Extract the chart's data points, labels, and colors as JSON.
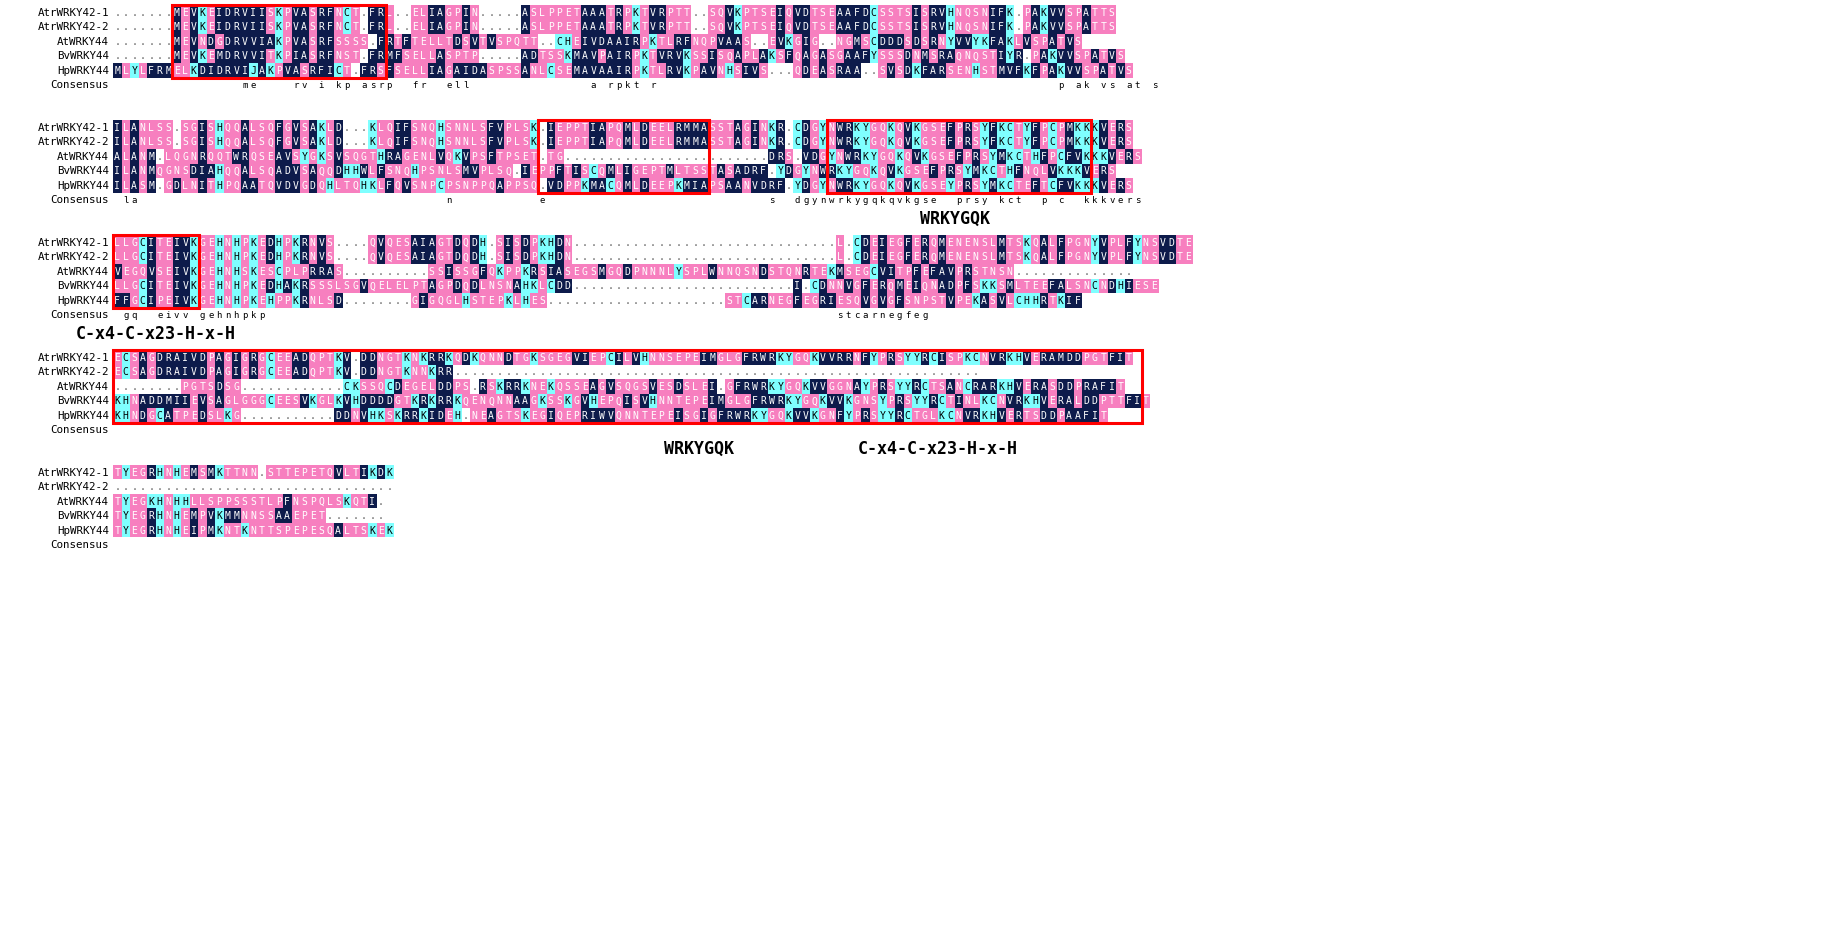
{
  "figsize": [
    18.38,
    9.3
  ],
  "dpi": 100,
  "background": "#ffffff",
  "clustal_colors": {
    "A": [
      "#0d1b4b",
      "#ffffff"
    ],
    "V": [
      "#0d1b4b",
      "#ffffff"
    ],
    "I": [
      "#0d1b4b",
      "#ffffff"
    ],
    "L": [
      "#f77fbf",
      "#ffffff"
    ],
    "M": [
      "#0d1b4b",
      "#ffffff"
    ],
    "F": [
      "#0d1b4b",
      "#ffffff"
    ],
    "W": [
      "#0d1b4b",
      "#ffffff"
    ],
    "P": [
      "#f77fbf",
      "#ffffff"
    ],
    "G": [
      "#f77fbf",
      "#ffffff"
    ],
    "S": [
      "#f77fbf",
      "#ffffff"
    ],
    "T": [
      "#f77fbf",
      "#ffffff"
    ],
    "C": [
      "#7fffff",
      "#000000"
    ],
    "Y": [
      "#7fffff",
      "#000000"
    ],
    "H": [
      "#7fffff",
      "#000000"
    ],
    "D": [
      "#0d1b4b",
      "#ffffff"
    ],
    "E": [
      "#f77fbf",
      "#ffffff"
    ],
    "N": [
      "#f77fbf",
      "#ffffff"
    ],
    "Q": [
      "#f77fbf",
      "#ffffff"
    ],
    "K": [
      "#7fffff",
      "#000000"
    ],
    "R": [
      "#0d1b4b",
      "#ffffff"
    ],
    "B": [
      "#0d1b4b",
      "#ffffff"
    ],
    "Z": [
      "#0d1b4b",
      "#ffffff"
    ],
    "X": [
      "#0d1b4b",
      "#ffffff"
    ],
    "J": [
      "#7fffff",
      "#000000"
    ]
  },
  "blocks": [
    {
      "seqs": [
        [
          "AtrWRKY42-1",
          ".......MEVKEIDRVIISKPVASRFNCT.FRL..ELIAGPIN.....ASLPPETAAATRPKTVRPTT..SQVKPTSEIQVDTSEAAFDCSSTSISRVHNQSNIFK.PAKVVSPATTS"
        ],
        [
          "AtrWRKY42-2",
          ".......MEVKEIDRVIISKPVASRFNCT.FRL..ELIAGPIN.....ASLPPETAAATRPKTVRPTT..SQVKPTSEIQVDTSEAAFDCSSTSISRVHNQSNIFK.PAKVVSPATTS"
        ],
        [
          "AtWRKY44",
          ".......MEVNDGDRVVIAKPVASRFSSSS.FRTFTELLTDSVTVSPQTT..CHEIVDAAIRPKTLRFNQPVAAS..EVKGIG..NGMSCDDDSDSRNYVVYKFAKLVSPATVS "
        ],
        [
          "BvWRKY44",
          ".......MEVKEMDRVVITKPIASRFNST.FRMFSELLASPTP.....ADTSSKMAVPAIRPKTVRVKSSISQAPLAKSFQAGASGAAFYSSSDNMSRAQNQSTIYR.PAKVVSPATVS"
        ],
        [
          "HpWRKY44",
          "MLYLFRMELKDIDRVIJAKPVASRFICT.FRSFSELLIAGAIDASPSSANLCSEMAVAAIRPKTLRVKPAVNHSIVS...QDEASRAA..SVSDKFARSENHSTMVFKFPAKVVSPATVS"
        ],
        [
          "Consensus",
          "               me    rv i kp asrp  fr  ell              a rpkt r                                               p ak vs at s"
        ]
      ],
      "red_boxes": [
        {
          "col_s": 7,
          "col_e": 32,
          "row_s": 0,
          "row_e": 5
        }
      ],
      "labels": []
    },
    {
      "seqs": [
        [
          "AtrWRKY42-1",
          "ILANLSS.SGISHQQALSQFGVSAKLD...KLQIFSNQHSNNLSFVPLSK.IEPPTIAPQMLDEELRMMASSTAGINKR.CDGYNWRKYGQKQVKGSEFPRSYFKCTYFPCPMKKKVERS"
        ],
        [
          "AtrWRKY42-2",
          "ILANLSS.SGISHQQALSQFGVSAKLD...KLQIFSNQHSNNLSFVPLSK.IEPPTIAPQMLDEELRMMASSTAGINKR.CDGYNWRKYGQKQVKGSEFPRSYFKCTYFPCPMKKKVERS"
        ],
        [
          "AtWRKY44",
          "ALANM.LQGNRQQTWRQSEAVSYGKSVSQGTHRAGENLVQKVPSFTPSET.TG........................DRS.VDGYNWRKYGQKQVKGSEFPRSYMKCTHFPCFVKKKVERS"
        ],
        [
          "BvWRKY44",
          "ILANMQGNSDIAHQQALSQADVSAQQDHHWLFSNQHPSNLSMVPLSQ.IEPPFTISCQMLIGEPTMLTSSTASADRF.YDGYNWRKYGQKQVKGSEFPRSYMKCTHFNQLVKKKVERS "
        ],
        [
          "HpWRKY44",
          "ILASM.GDLNITHPQAATQVDVGDQHLTQHKLFQVSNPCPSNPPQAPPSQ.VDPPKMACQMLDEEPKMIAPSAANVDRF.YDGYNWRKYGQKQVKGSEYPRSYMKCTEFTCFVKKKVERS"
        ],
        [
          "Consensus",
          " la                                    n          e                          s  dgynwrkygqkqvkgse  prsy kct  p c  kkkvers"
        ]
      ],
      "red_boxes": [
        {
          "col_s": 50,
          "col_e": 70,
          "row_s": 0,
          "row_e": 5
        },
        {
          "col_s": 84,
          "col_e": 115,
          "row_s": 0,
          "row_e": 5
        }
      ],
      "labels": [
        {
          "text": "WRKYGQK",
          "col": 99,
          "below_rows": true,
          "bold": true,
          "fontsize": 12
        }
      ]
    },
    {
      "seqs": [
        [
          "AtrWRKY42-1",
          "LLGCITEIVKGEHNHPKEDHPKRNVS....QVQESAIAGTDQDH.SISDPKHDN...............................L.CDEIEGFERQMENENSLMTSKQALFPGNYVPLFYNSVDTE"
        ],
        [
          "AtrWRKY42-2",
          "LLGCITEIVKGEHNHPKEDHPKRNVS....QVQESAIAGTDQDH.SISDPKHDN...............................L.CDEIEGFERQMENENSLMTSKQALFPGNYVPLFYNSVDTE"
        ],
        [
          "AtWRKY44",
          "VEGQVSEIVKGEHNHSKESCPLPRRAS..........SSISSGFQKPPKRSIASEGSMGQDPNNNLYSPLWNNQSNDSTQNRTEKMSEGCVITPFEFAVPRSTNSN..............    "
        ],
        [
          "BvWRKY44",
          "LLGCITEIVKGEHNHPKEDHAKRSSSLSGVQELELPTAGPDQDLNSNAHKLCDD..........................I.CDNNVGFERQMEIQNADPFSKKSMLTEEFALSNCNDHIESE"
        ],
        [
          "HpWRKY44",
          "FFGCIPEIVKGEHNHPKEHPPKRNLSD........GIGQGLHSTEPKLHES.....................STCARNEGFEGRIESQVGVGFSNPSTVPEKASVLCHHRTKIF        "
        ],
        [
          "Consensus",
          " gq  eivv gehnhpkp                                                                   stcarnegfeg                         "
        ]
      ],
      "red_boxes": [
        {
          "col_s": 0,
          "col_e": 10,
          "row_s": 0,
          "row_e": 5
        }
      ],
      "labels": [
        {
          "text": "C-x4-C-x23-H-x-H",
          "col": 5,
          "below_rows": true,
          "bold": true,
          "fontsize": 12
        }
      ]
    },
    {
      "seqs": [
        [
          "AtrWRKY42-1",
          "ECSAGDRAIVDPAGIGRGCEEADQPTKV.DDNGTKNKRRKQDKQNNDTGKSGEGVIEPCILVHNNSEPEIMGLGFRWRKYGQKVVRRNFYPRSYYRCISPKCNVRKHVERAMDDPGTFIT"
        ],
        [
          "AtrWRKY42-2",
          "ECSAGDRAIVDPAGIGRGCEEADQPTKV.DDNGTKNNKRR..............................................................              "
        ],
        [
          "AtWRKY44",
          "........PGTSDSG............CKSSQCDEGELDDPS.RSKRRKNEKQSSEAGVSQGSVESDSLEI.GFRWRKYGQKVVGGNAYPRSYYRCTSANCRARKHVERASDDPRAFIT "
        ],
        [
          "BvWRKY44",
          "KHNADDMIIEVSAGLGGGCEESVKGLKVHDDDDGTKRKRRKQENQNNAAGKSSKGVHEPQISVHNNTEPEIMGLGFRWRKYGQKVVKGNSYPRSYYRCTINLKCNVRKHVERALDDPTTFIT"
        ],
        [
          "HpWRKY44",
          "KHNDGCATPEDSLKG...........DDNVHKSKRRKIDEH.NEAGTSKEGIQEPRIWVQNNTEPEISGIGFRWRKYGQKVVKGNFYPRSYYRCTGLKCNVRKHVERTSDDPAAFIT  "
        ],
        [
          "Consensus",
          ""
        ]
      ],
      "red_boxes": [
        {
          "col_s": 0,
          "col_e": 121,
          "row_s": 0,
          "row_e": 5
        }
      ],
      "labels": [
        {
          "text": "WRKYGQK",
          "col": 69,
          "below_rows": true,
          "bold": true,
          "fontsize": 12
        },
        {
          "text": "C-x4-C-x23-H-x-H",
          "col": 97,
          "below_rows": true,
          "bold": true,
          "fontsize": 12
        }
      ]
    },
    {
      "seqs": [
        [
          "AtrWRKY42-1",
          "TYEGRHNHEMSMKTTNN.STTEPETQVLTIKDK"
        ],
        [
          "AtrWRKY42-2",
          "................................."
        ],
        [
          "AtWRKY44",
          "TYEGKHNHHLLSPPSSSTLPFNSPQLSKQTI."
        ],
        [
          "BvWRKY44",
          "TYEGRHNHEMPVKMMNNSSAAEPET......."
        ],
        [
          "HpWRKY44",
          "TYEGRHNHEIPMKNTKNTTSPEPESQALTSKEK"
        ],
        [
          "Consensus",
          ""
        ]
      ],
      "red_boxes": [],
      "labels": []
    }
  ]
}
